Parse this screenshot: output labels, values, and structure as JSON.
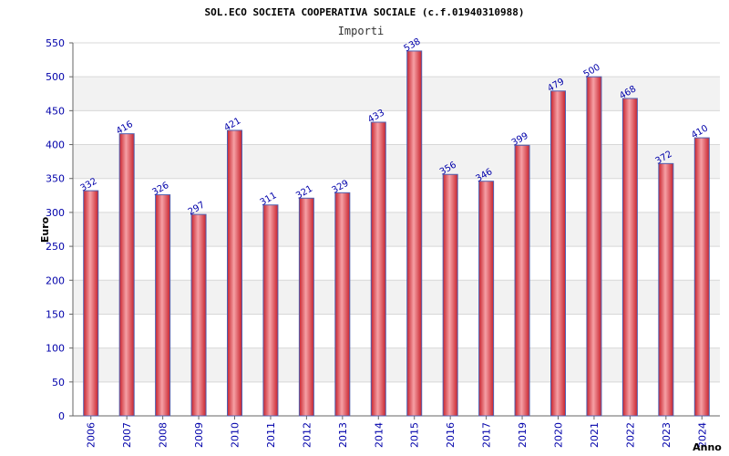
{
  "chart_data": {
    "type": "bar",
    "title": "SOL.ECO SOCIETA COOPERATIVA SOCIALE (c.f.01940310988)",
    "subtitle": "Importi",
    "xlabel": "Anno",
    "ylabel": "Euro",
    "ylim": [
      0,
      550
    ],
    "yticks": [
      0,
      50,
      100,
      150,
      200,
      250,
      300,
      350,
      400,
      450,
      500,
      550
    ],
    "grid": true,
    "categories": [
      "2006",
      "2007",
      "2008",
      "2009",
      "2010",
      "2011",
      "2012",
      "2013",
      "2014",
      "2015",
      "2016",
      "2017",
      "2019",
      "2020",
      "2021",
      "2022",
      "2023",
      "2024"
    ],
    "values": [
      332,
      416,
      326,
      297,
      421,
      311,
      321,
      329,
      433,
      538,
      356,
      346,
      399,
      479,
      500,
      468,
      372,
      410
    ],
    "colors": {
      "bar": "#e8404a",
      "bar_highlight": "#f6a0a5",
      "bar_outline": "#5060b0",
      "band": "#f2f2f2",
      "text": "#0000aa"
    }
  }
}
